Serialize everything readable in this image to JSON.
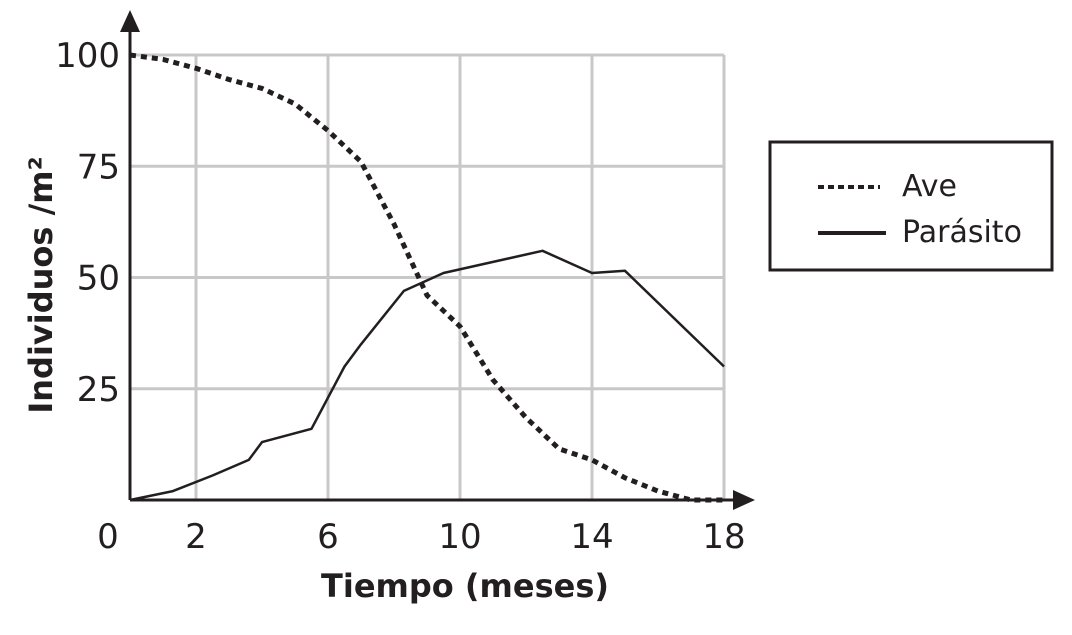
{
  "chart_data": {
    "type": "line",
    "xlabel": "Tiempo (meses)",
    "ylabel": "Individuos /m²",
    "origin_label": "0",
    "x_ticks": [
      "2",
      "6",
      "10",
      "14",
      "18"
    ],
    "y_ticks": [
      "25",
      "50",
      "75",
      "100"
    ],
    "xlim": [
      0,
      18
    ],
    "ylim": [
      0,
      100
    ],
    "grid": true,
    "legend_position": "right",
    "series": [
      {
        "name": "Ave",
        "style": "dotted",
        "color": "#231f20",
        "points": [
          [
            0,
            100
          ],
          [
            1,
            99
          ],
          [
            2,
            97
          ],
          [
            3,
            94.5
          ],
          [
            4,
            92.5
          ],
          [
            5,
            89
          ],
          [
            6,
            83
          ],
          [
            7,
            76
          ],
          [
            8,
            62
          ],
          [
            9,
            46
          ],
          [
            10,
            39
          ],
          [
            11,
            27
          ],
          [
            12,
            18.5
          ],
          [
            13,
            11.5
          ],
          [
            14,
            9
          ],
          [
            15,
            5
          ],
          [
            16,
            2
          ],
          [
            17,
            0
          ],
          [
            18,
            0
          ]
        ]
      },
      {
        "name": "Parásito",
        "style": "solid",
        "color": "#231f20",
        "points": [
          [
            0,
            0
          ],
          [
            1.3,
            2
          ],
          [
            2.5,
            5.5
          ],
          [
            3.6,
            9
          ],
          [
            4,
            13
          ],
          [
            5.5,
            16
          ],
          [
            6.5,
            30
          ],
          [
            7,
            35
          ],
          [
            8.3,
            47
          ],
          [
            9.5,
            51
          ],
          [
            12.5,
            56
          ],
          [
            14,
            51
          ],
          [
            15,
            51.5
          ],
          [
            18,
            30
          ]
        ]
      }
    ]
  }
}
